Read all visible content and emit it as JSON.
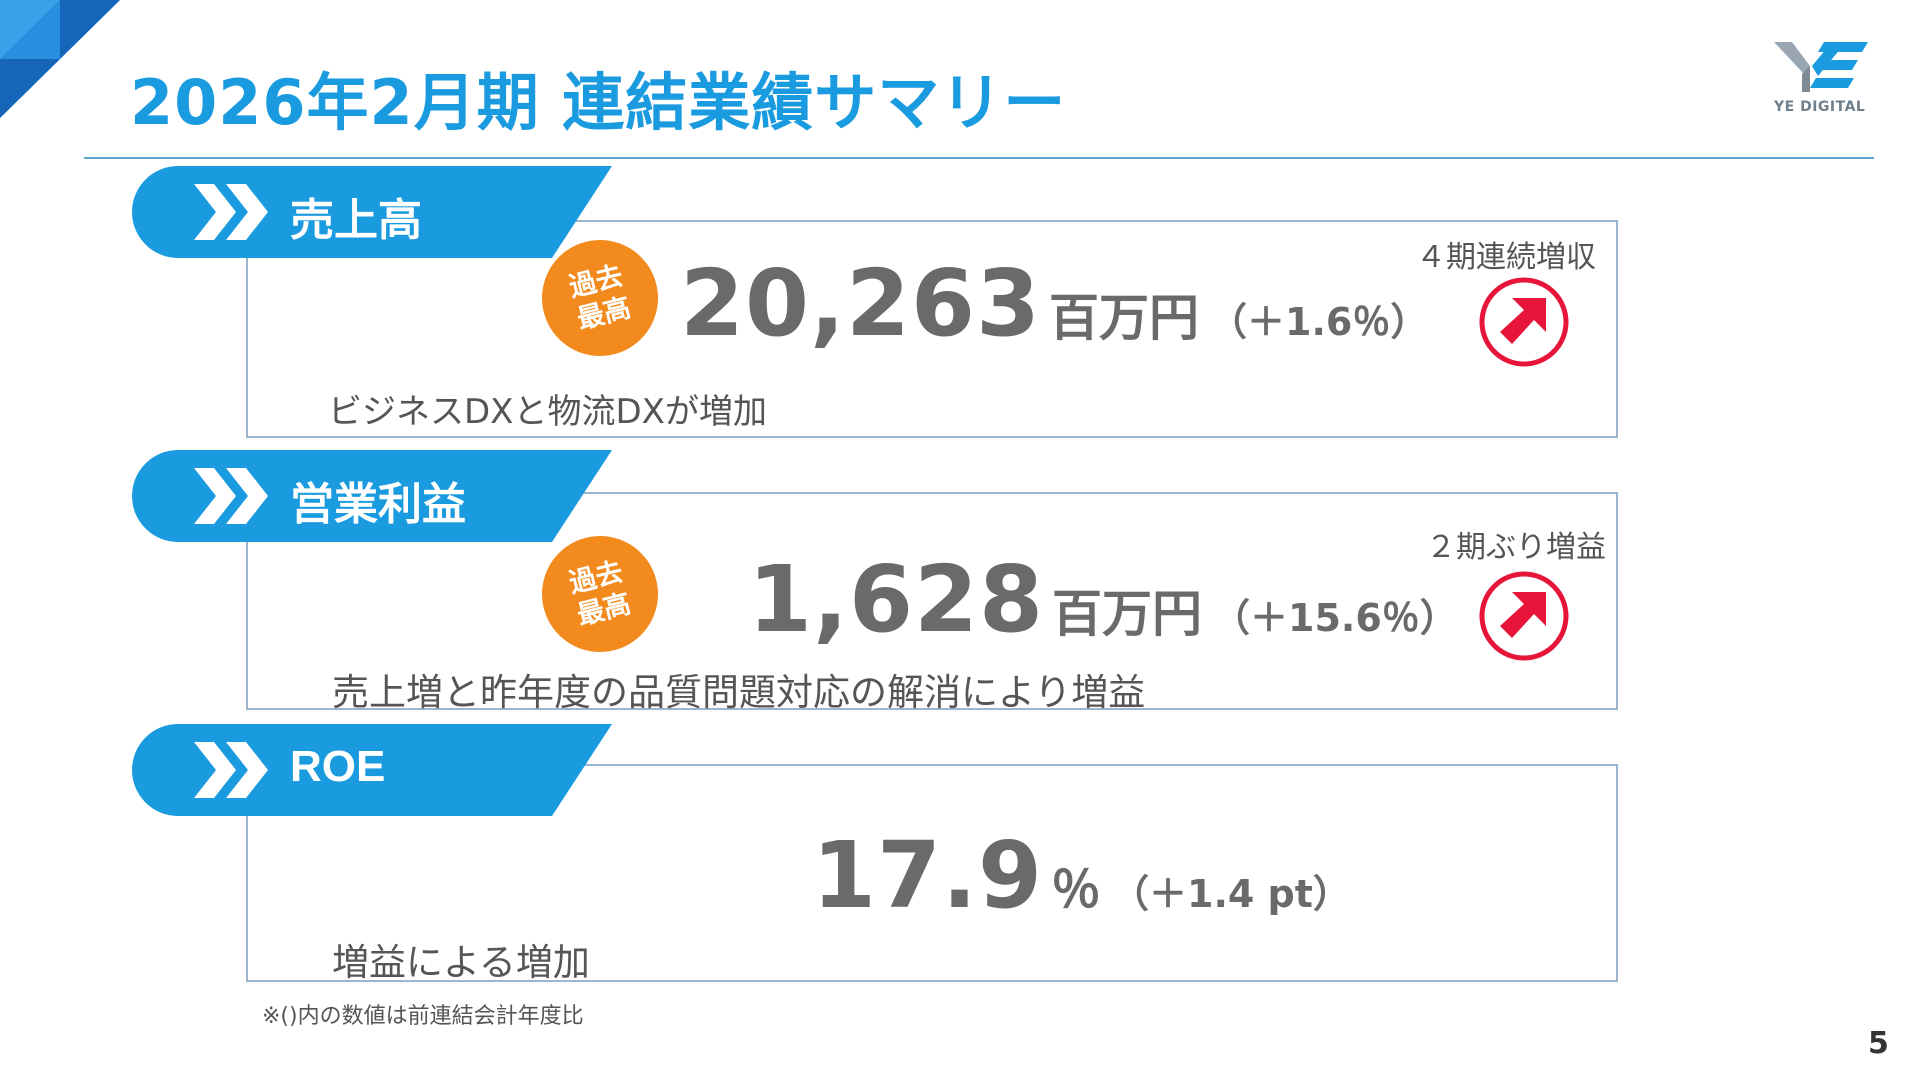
{
  "title": "2026年2月期 連結業績サマリー",
  "logo": {
    "text": "YE DIGITAL"
  },
  "accent_color": "#1a9be0",
  "badge_color": "#f28a1d",
  "arrow_color": "#e8153b",
  "sections": [
    {
      "label": "売上高",
      "badge": [
        "過去",
        "最高"
      ],
      "value": "20,263",
      "unit": "百万円",
      "change": "（＋1.6％）",
      "note": "４期連続増収",
      "arrow": "up-right-arrow",
      "description": "ビジネスDXと物流DXが増加"
    },
    {
      "label": "営業利益",
      "badge": [
        "過去",
        "最高"
      ],
      "value": "1,628",
      "unit": "百万円",
      "change": "（＋15.6％）",
      "note": "２期ぶり増益",
      "arrow": "up-right-arrow",
      "description": "売上増と昨年度の品質問題対応の解消により増益"
    },
    {
      "label": "ROE",
      "value": "17.9",
      "unit": "％",
      "change": "（＋1.4 pt）",
      "description": "増益による増加"
    }
  ],
  "footnote": "※()内の数値は前連結会計年度比",
  "page_number": "5"
}
